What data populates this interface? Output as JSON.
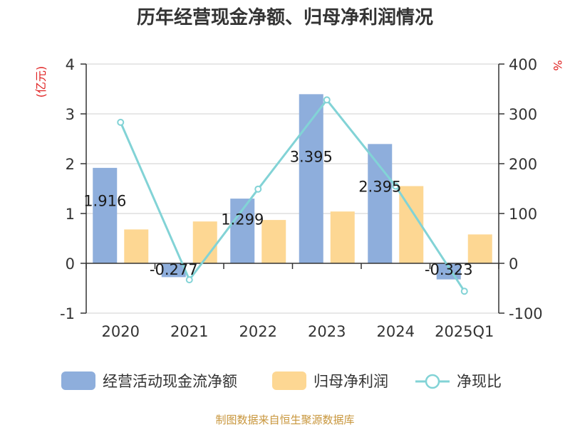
{
  "chart_data": {
    "type": "bar",
    "title": "历年经营现金净额、归母净利润情况",
    "categories": [
      "2020",
      "2021",
      "2022",
      "2023",
      "2024",
      "2025Q1"
    ],
    "series": [
      {
        "name": "经营活动现金流净额",
        "type": "bar",
        "axis": "left",
        "color": "#8eaedc",
        "values": [
          1.916,
          -0.277,
          1.299,
          3.395,
          2.395,
          -0.323
        ],
        "labels": [
          "1.916",
          "-0.277",
          "1.299",
          "3.395",
          "2.395",
          "-0.323"
        ]
      },
      {
        "name": "归母净利润",
        "type": "bar",
        "axis": "left",
        "color": "#fdd793",
        "values": [
          0.68,
          0.84,
          0.87,
          1.04,
          1.55,
          0.58
        ]
      },
      {
        "name": "净现比",
        "type": "line",
        "axis": "right",
        "color": "#82d3d6",
        "values": [
          283,
          -33,
          149,
          328,
          155,
          -56
        ]
      }
    ],
    "y_left": {
      "unit": "(亿元)",
      "ylim": [
        -1,
        4
      ],
      "ticks": [
        "-1",
        "0",
        "1",
        "2",
        "3",
        "4"
      ]
    },
    "y_right": {
      "unit": "%",
      "ylim": [
        -100,
        400
      ],
      "ticks": [
        "-100",
        "0",
        "100",
        "200",
        "300",
        "400"
      ]
    },
    "grid": true,
    "legend_position": "bottom"
  },
  "footer": {
    "source": "制图数据来自恒生聚源数据库"
  }
}
